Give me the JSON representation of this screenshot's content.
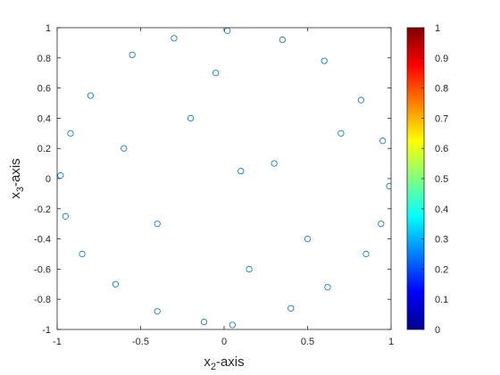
{
  "chart_data": {
    "type": "scatter",
    "marker": "open-circle",
    "marker_color": "#0072BD",
    "xlabel_main": "x",
    "xlabel_sub": "2",
    "xlabel_suffix": "-axis",
    "ylabel_main": "x",
    "ylabel_sub": "3",
    "ylabel_suffix": "-axis",
    "xlim": [
      -1,
      1
    ],
    "ylim": [
      -1,
      1
    ],
    "x_ticks": [
      "-1",
      "-0.5",
      "0",
      "0.5",
      "1"
    ],
    "y_ticks": [
      "-1",
      "-0.8",
      "-0.6",
      "-0.4",
      "-0.2",
      "0",
      "0.2",
      "0.4",
      "0.6",
      "0.8",
      "1"
    ],
    "colorbar": {
      "colormap": "jet",
      "range": [
        0,
        1
      ],
      "ticks": [
        "0",
        "0.1",
        "0.2",
        "0.3",
        "0.4",
        "0.5",
        "0.6",
        "0.7",
        "0.8",
        "0.9",
        "1"
      ],
      "colors": [
        "#00008F",
        "#0000FF",
        "#0080FF",
        "#00FFFF",
        "#80FF80",
        "#FFFF00",
        "#FF8000",
        "#FF0000",
        "#800000"
      ]
    },
    "grid": false,
    "series": [
      {
        "points": [
          [
            0.02,
            0.98
          ],
          [
            -0.3,
            0.93
          ],
          [
            0.35,
            0.92
          ],
          [
            -0.55,
            0.82
          ],
          [
            0.6,
            0.78
          ],
          [
            -0.8,
            0.55
          ],
          [
            0.82,
            0.52
          ],
          [
            -0.92,
            0.3
          ],
          [
            0.95,
            0.25
          ],
          [
            -0.98,
            0.02
          ],
          [
            0.99,
            -0.05
          ],
          [
            -0.95,
            -0.25
          ],
          [
            0.94,
            -0.3
          ],
          [
            -0.85,
            -0.5
          ],
          [
            0.85,
            -0.5
          ],
          [
            -0.65,
            -0.7
          ],
          [
            0.62,
            -0.72
          ],
          [
            -0.4,
            -0.88
          ],
          [
            0.4,
            -0.86
          ],
          [
            -0.12,
            -0.95
          ],
          [
            0.05,
            -0.97
          ],
          [
            -0.2,
            0.4
          ],
          [
            0.3,
            0.1
          ],
          [
            -0.4,
            -0.3
          ],
          [
            0.5,
            -0.4
          ],
          [
            -0.6,
            0.2
          ],
          [
            0.15,
            -0.6
          ],
          [
            0.7,
            0.3
          ],
          [
            -0.05,
            0.7
          ],
          [
            0.1,
            0.05
          ]
        ]
      }
    ]
  }
}
